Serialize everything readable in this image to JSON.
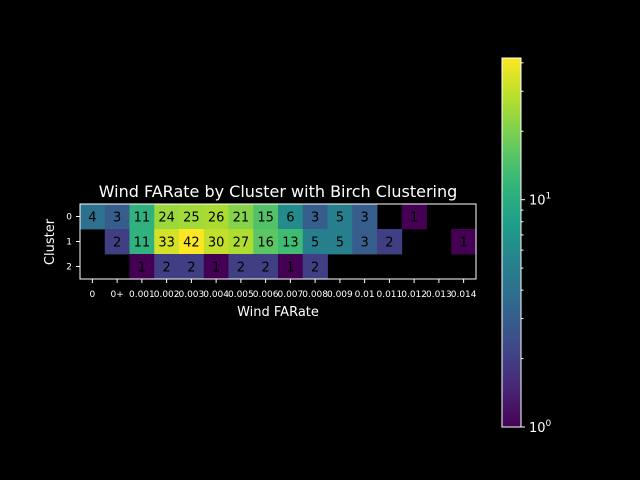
{
  "chart_data": {
    "type": "heatmap",
    "title": "Wind FARate by Cluster with Birch Clustering",
    "xlabel": "Wind FARate",
    "ylabel": "Cluster",
    "x_ticks": [
      "0",
      "0+",
      "0.001",
      "0.002",
      "0.003",
      "0.004",
      "0.005",
      "0.006",
      "0.007",
      "0.008",
      "0.009",
      "0.01",
      "0.011",
      "0.012",
      "0.013",
      "0.014"
    ],
    "y_ticks": [
      "0",
      "1",
      "2"
    ],
    "values": [
      [
        4,
        3,
        11,
        24,
        25,
        26,
        21,
        15,
        6,
        3,
        5,
        3,
        null,
        1,
        null,
        null
      ],
      [
        null,
        2,
        11,
        33,
        42,
        30,
        27,
        16,
        13,
        5,
        5,
        3,
        2,
        null,
        null,
        1
      ],
      [
        null,
        null,
        1,
        2,
        2,
        1,
        2,
        2,
        1,
        2,
        null,
        null,
        null,
        null,
        null,
        null
      ]
    ],
    "colormap": "viridis",
    "color_scale": "log",
    "color_range": [
      1,
      42
    ],
    "colorbar": {
      "ticks": [
        {
          "base": "10",
          "exp": "0",
          "value": 1
        },
        {
          "base": "10",
          "exp": "1",
          "value": 10
        }
      ]
    }
  }
}
